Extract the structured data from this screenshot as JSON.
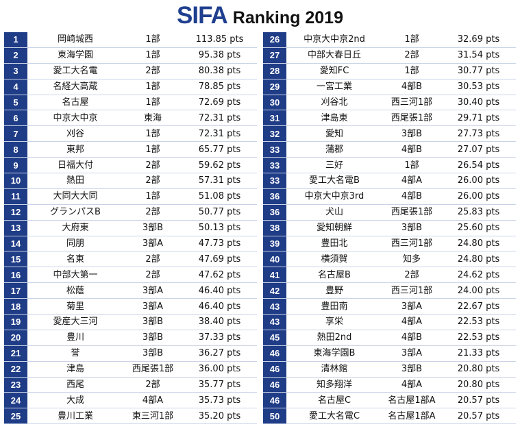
{
  "header": {
    "brand": "SIFA",
    "subtitle": "Ranking 2019"
  },
  "left_rows": [
    {
      "rank": "1",
      "team": "岡崎城西",
      "league": "1部",
      "pts": "113.85 pts"
    },
    {
      "rank": "2",
      "team": "東海学園",
      "league": "1部",
      "pts": "95.38 pts"
    },
    {
      "rank": "3",
      "team": "愛工大名電",
      "league": "2部",
      "pts": "80.38 pts"
    },
    {
      "rank": "4",
      "team": "名経大高蔵",
      "league": "1部",
      "pts": "78.85 pts"
    },
    {
      "rank": "5",
      "team": "名古屋",
      "league": "1部",
      "pts": "72.69 pts"
    },
    {
      "rank": "6",
      "team": "中京大中京",
      "league": "東海",
      "pts": "72.31 pts"
    },
    {
      "rank": "7",
      "team": "刈谷",
      "league": "1部",
      "pts": "72.31 pts"
    },
    {
      "rank": "8",
      "team": "東邦",
      "league": "1部",
      "pts": "65.77 pts"
    },
    {
      "rank": "9",
      "team": "日福大付",
      "league": "2部",
      "pts": "59.62 pts"
    },
    {
      "rank": "10",
      "team": "熱田",
      "league": "2部",
      "pts": "57.31 pts"
    },
    {
      "rank": "11",
      "team": "大同大大同",
      "league": "1部",
      "pts": "51.08 pts"
    },
    {
      "rank": "12",
      "team": "グランパスB",
      "league": "2部",
      "pts": "50.77 pts"
    },
    {
      "rank": "13",
      "team": "大府東",
      "league": "3部B",
      "pts": "50.13 pts"
    },
    {
      "rank": "14",
      "team": "同朋",
      "league": "3部A",
      "pts": "47.73 pts"
    },
    {
      "rank": "15",
      "team": "名東",
      "league": "2部",
      "pts": "47.69 pts"
    },
    {
      "rank": "16",
      "team": "中部大第一",
      "league": "2部",
      "pts": "47.62 pts"
    },
    {
      "rank": "17",
      "team": "松蔭",
      "league": "3部A",
      "pts": "46.40 pts"
    },
    {
      "rank": "18",
      "team": "菊里",
      "league": "3部A",
      "pts": "46.40 pts"
    },
    {
      "rank": "19",
      "team": "愛産大三河",
      "league": "3部B",
      "pts": "38.40 pts"
    },
    {
      "rank": "20",
      "team": "豊川",
      "league": "3部B",
      "pts": "37.33 pts"
    },
    {
      "rank": "21",
      "team": "誉",
      "league": "3部B",
      "pts": "36.27 pts"
    },
    {
      "rank": "22",
      "team": "津島",
      "league": "西尾張1部",
      "pts": "36.00 pts"
    },
    {
      "rank": "23",
      "team": "西尾",
      "league": "2部",
      "pts": "35.77 pts"
    },
    {
      "rank": "24",
      "team": "大成",
      "league": "4部A",
      "pts": "35.73 pts"
    },
    {
      "rank": "25",
      "team": "豊川工業",
      "league": "東三河1部",
      "pts": "35.20 pts"
    }
  ],
  "right_rows": [
    {
      "rank": "26",
      "team": "中京大中京2nd",
      "league": "1部",
      "pts": "32.69 pts"
    },
    {
      "rank": "27",
      "team": "中部大春日丘",
      "league": "2部",
      "pts": "31.54 pts"
    },
    {
      "rank": "28",
      "team": "愛知FC",
      "league": "1部",
      "pts": "30.77 pts"
    },
    {
      "rank": "29",
      "team": "一宮工業",
      "league": "4部B",
      "pts": "30.53 pts"
    },
    {
      "rank": "30",
      "team": "刈谷北",
      "league": "西三河1部",
      "pts": "30.40 pts"
    },
    {
      "rank": "31",
      "team": "津島東",
      "league": "西尾張1部",
      "pts": "29.71 pts"
    },
    {
      "rank": "32",
      "team": "愛知",
      "league": "3部B",
      "pts": "27.73 pts"
    },
    {
      "rank": "33",
      "team": "蒲郡",
      "league": "4部B",
      "pts": "27.07 pts"
    },
    {
      "rank": "33",
      "team": "三好",
      "league": "1部",
      "pts": "26.54 pts"
    },
    {
      "rank": "33",
      "team": "愛工大名電B",
      "league": "4部A",
      "pts": "26.00 pts"
    },
    {
      "rank": "36",
      "team": "中京大中京3rd",
      "league": "4部B",
      "pts": "26.00 pts"
    },
    {
      "rank": "36",
      "team": "犬山",
      "league": "西尾張1部",
      "pts": "25.83 pts"
    },
    {
      "rank": "38",
      "team": "愛知朝鮮",
      "league": "3部B",
      "pts": "25.60 pts"
    },
    {
      "rank": "39",
      "team": "豊田北",
      "league": "西三河1部",
      "pts": "24.80 pts"
    },
    {
      "rank": "40",
      "team": "横須賀",
      "league": "知多",
      "pts": "24.80 pts"
    },
    {
      "rank": "41",
      "team": "名古屋B",
      "league": "2部",
      "pts": "24.62 pts"
    },
    {
      "rank": "42",
      "team": "豊野",
      "league": "西三河1部",
      "pts": "24.00 pts"
    },
    {
      "rank": "43",
      "team": "豊田南",
      "league": "3部A",
      "pts": "22.67 pts"
    },
    {
      "rank": "43",
      "team": "享栄",
      "league": "4部A",
      "pts": "22.53 pts"
    },
    {
      "rank": "45",
      "team": "熱田2nd",
      "league": "4部B",
      "pts": "22.53 pts"
    },
    {
      "rank": "46",
      "team": "東海学園B",
      "league": "3部A",
      "pts": "21.33 pts"
    },
    {
      "rank": "46",
      "team": "清林館",
      "league": "3部B",
      "pts": "20.80 pts"
    },
    {
      "rank": "46",
      "team": "知多翔洋",
      "league": "4部A",
      "pts": "20.80 pts"
    },
    {
      "rank": "46",
      "team": "名古屋C",
      "league": "名古屋1部A",
      "pts": "20.57 pts"
    },
    {
      "rank": "50",
      "team": "愛工大名電C",
      "league": "名古屋1部A",
      "pts": "20.57 pts"
    }
  ],
  "colors": {
    "brand": "#1f3f8f",
    "rank_cell": "#1f3c87"
  }
}
